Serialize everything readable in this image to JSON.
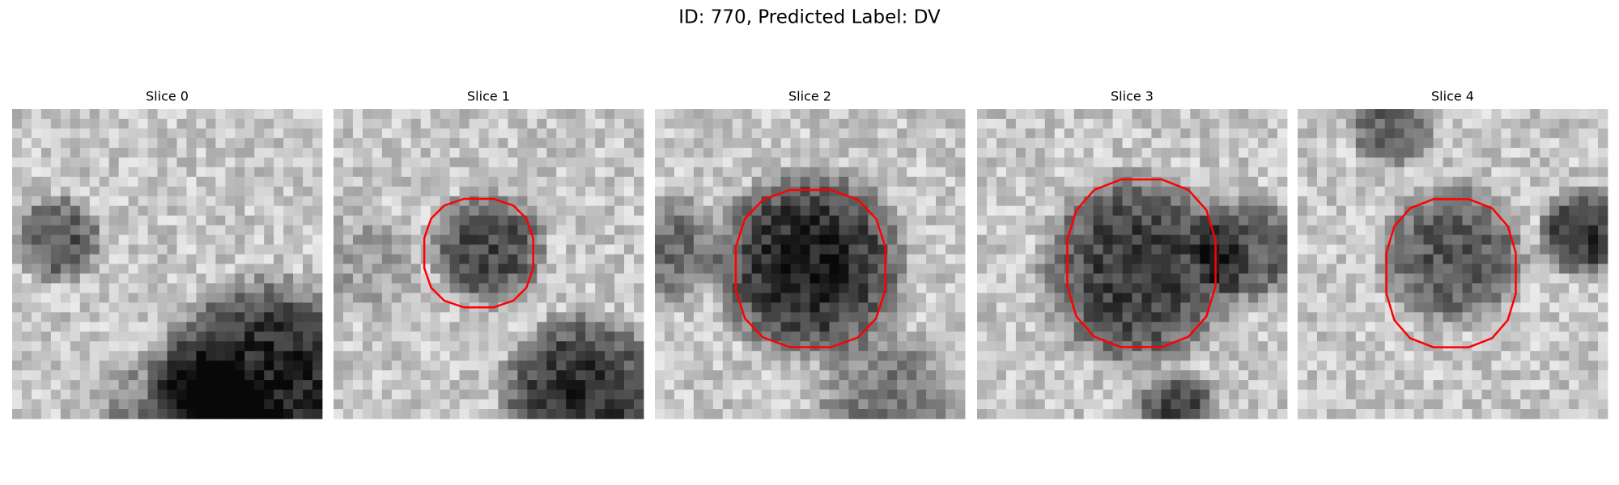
{
  "title": "ID: 770, Predicted Label: DV",
  "panels": [
    {
      "title": "Slice 0"
    },
    {
      "title": "Slice 1"
    },
    {
      "title": "Slice 2"
    },
    {
      "title": "Slice 3"
    },
    {
      "title": "Slice 4"
    }
  ]
}
